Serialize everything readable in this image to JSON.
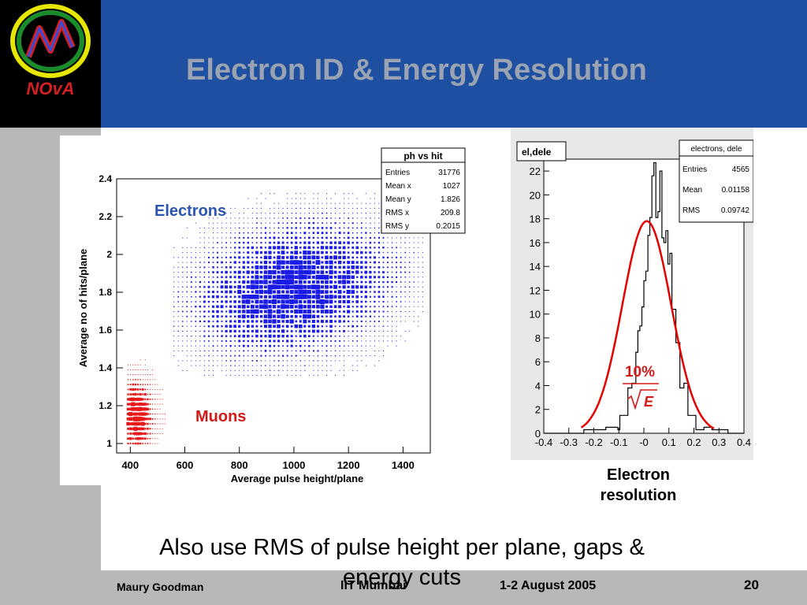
{
  "slide": {
    "title": "Electron ID & Energy Resolution",
    "note": "Also use RMS of pulse height per plane, gaps & energy cuts",
    "logo_text": "NOvA"
  },
  "footer": {
    "author": "Maury Goodman",
    "venue": "IIT Mumbai",
    "date": "1-2 August 2005",
    "page": "20"
  },
  "chart_data": [
    {
      "type": "scatter",
      "stats_title": "ph vs hit",
      "stats": [
        {
          "label": "Entries",
          "value": "31776"
        },
        {
          "label": "Mean x",
          "value": "1027"
        },
        {
          "label": "Mean y",
          "value": "1.826"
        },
        {
          "label": "RMS x",
          "value": "209.8"
        },
        {
          "label": "RMS y",
          "value": "0.2015"
        }
      ],
      "xlabel": "Average pulse height/plane",
      "ylabel": "Average no of hits/plane",
      "xlim": [
        350,
        1500
      ],
      "ylim": [
        0.95,
        2.4
      ],
      "xticks": [
        "400",
        "600",
        "800",
        "1000",
        "1200",
        "1400"
      ],
      "yticks": [
        "1",
        "1.2",
        "1.4",
        "1.6",
        "1.8",
        "2",
        "2.2",
        "2.4"
      ],
      "annotations": [
        "Electrons",
        "Muons"
      ],
      "colors": {
        "electrons": "#1a1ae6",
        "muons": "#e61a1a"
      },
      "series": [
        {
          "name": "Electrons",
          "center": [
            1000,
            1.82
          ],
          "spread": [
            210,
            0.2
          ]
        },
        {
          "name": "Muons",
          "center": [
            420,
            1.15
          ],
          "spread": [
            30,
            0.12
          ]
        }
      ]
    },
    {
      "type": "bar",
      "hist_title": "el,dele",
      "stats_title": "electrons, dele",
      "stats": [
        {
          "label": "Entries",
          "value": "4565"
        },
        {
          "label": "Mean",
          "value": "0.01158"
        },
        {
          "label": "RMS",
          "value": "0.09742"
        }
      ],
      "xlim": [
        -0.4,
        0.4
      ],
      "ylim": [
        0,
        23
      ],
      "xticks": [
        "-0.4",
        "-0.3",
        "-0.2",
        "-0.1",
        "-0",
        "0.1",
        "0.2",
        "0.3",
        "0.4"
      ],
      "yticks": [
        "0",
        "2",
        "4",
        "6",
        "8",
        "10",
        "12",
        "14",
        "16",
        "18",
        "20",
        "22"
      ],
      "bin_edges_start": -0.4,
      "bin_width": 0.008,
      "values": [
        0,
        0,
        0,
        0,
        0,
        0,
        0,
        0,
        0,
        0,
        0,
        0,
        0,
        0,
        0,
        0,
        0,
        0,
        0,
        0,
        0.3,
        0.3,
        0.3,
        0.3,
        0.3,
        0.3,
        0.3,
        0.3,
        0.3,
        0.3,
        0.3,
        0.5,
        0.5,
        0.5,
        0.5,
        0.5,
        0.5,
        0.3,
        1.5,
        1.5,
        1.5,
        1.5,
        3.8,
        3.8,
        4.2,
        4.2,
        6.8,
        8.6,
        9.0,
        10.6,
        12.8,
        13.6,
        16.6,
        18.1,
        21.6,
        22.7,
        18.1,
        18.6,
        22.0,
        16.4,
        16.0,
        17.0,
        14.2,
        15.1,
        10.4,
        10.4,
        7.6,
        7.6,
        3.8,
        3.8,
        4.2,
        4.2,
        1.5,
        1.5,
        1.5,
        1.5,
        0.3,
        0.3,
        0.3,
        0.3,
        0.5,
        0.5,
        0.5,
        0.5,
        0.3,
        0.3,
        0.3,
        0.3,
        0.3,
        0.3,
        0.3,
        0.3,
        0,
        0,
        0,
        0,
        0,
        0,
        0,
        0
      ],
      "fit": {
        "amplitude": 17.8,
        "mean": 0.01158,
        "sigma": 0.09742,
        "range": [
          -0.25,
          0.28
        ],
        "color": "#e60000"
      },
      "fit_label": "10%",
      "fit_label_den": "E",
      "caption": [
        "Electron",
        "resolution"
      ]
    }
  ]
}
